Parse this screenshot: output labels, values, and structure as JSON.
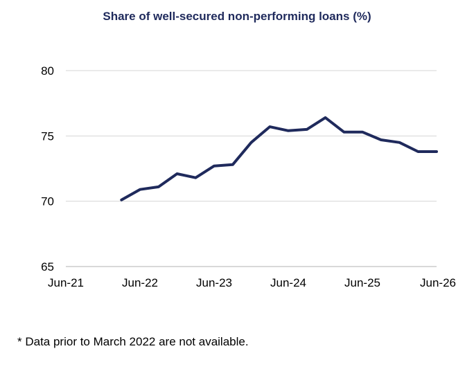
{
  "chart_data": {
    "type": "line",
    "title": "Share of well-secured non-performing loans (%)",
    "xlabel": "",
    "ylabel": "",
    "ylim": [
      65,
      80
    ],
    "yticks": [
      65,
      70,
      75,
      80
    ],
    "xlim": [
      "2021-06",
      "2026-06"
    ],
    "xticks": [
      "Jun-21",
      "Jun-22",
      "Jun-23",
      "Jun-24",
      "Jun-25",
      "Jun-26"
    ],
    "grid": true,
    "series": [
      {
        "color": "#1f2a5c",
        "x": [
          "2022-03",
          "2022-06",
          "2022-09",
          "2022-12",
          "2023-03",
          "2023-06",
          "2023-09",
          "2023-12",
          "2024-03",
          "2024-06",
          "2024-09",
          "2024-12",
          "2025-03",
          "2025-06",
          "2025-09",
          "2025-12",
          "2026-03",
          "2026-06"
        ],
        "values": [
          70.1,
          70.9,
          71.1,
          72.1,
          71.8,
          72.7,
          72.8,
          74.5,
          75.7,
          75.4,
          75.5,
          76.4,
          75.3,
          75.3,
          74.7,
          74.5,
          73.8,
          73.8
        ]
      }
    ]
  },
  "footnote": "* Data prior to March 2022 are not available."
}
